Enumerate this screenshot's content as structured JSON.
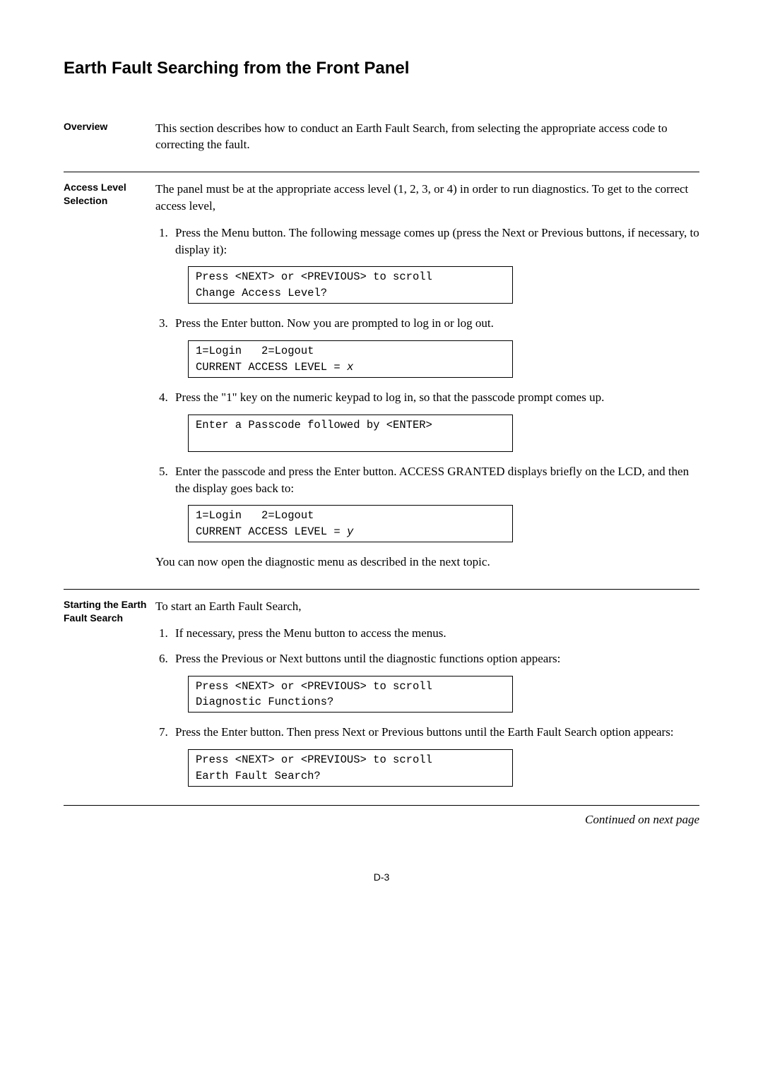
{
  "title": "Earth Fault Searching from the Front Panel",
  "overview": {
    "label": "Overview",
    "text": "This section describes how to conduct an Earth Fault Search, from selecting the appropriate access code to correcting the fault."
  },
  "access": {
    "label": "Access Level Selection",
    "intro": "The panel must be at the appropriate access level (1, 2, 3, or 4) in order to run diagnostics. To get to the correct access level,",
    "step1": "Press the Menu button. The following message comes up (press the Next or Previous buttons, if necessary, to display it):",
    "lcd1": "Press <NEXT> or <PREVIOUS> to scroll\nChange Access Level?",
    "step3": "Press the Enter button. Now you are prompted to log in or log out.",
    "lcd2_pre": "1=Login   2=Logout\nCURRENT ACCESS LEVEL = ",
    "lcd2_var": "x",
    "step4": "Press the \"1\" key on the numeric keypad to log in, so that the passcode prompt comes up.",
    "lcd3": "Enter a Passcode followed by <ENTER>\n ",
    "step5": "Enter the passcode and press the Enter button. ACCESS GRANTED displays briefly on the LCD, and then the display goes back to:",
    "lcd4_pre": "1=Login   2=Logout\nCURRENT ACCESS LEVEL = ",
    "lcd4_var": "y",
    "outro": "You can now open the diagnostic menu as described in the next topic."
  },
  "starting": {
    "label": "Starting the Earth Fault Search",
    "intro": "To start an Earth Fault Search,",
    "step1": "If necessary, press the Menu button to access the menus.",
    "step6": "Press the Previous or Next buttons until the diagnostic functions option appears:",
    "lcd5": "Press <NEXT> or <PREVIOUS> to scroll\nDiagnostic Functions?",
    "step7": "Press the Enter button. Then press Next or Previous buttons until the Earth Fault Search option appears:",
    "lcd6": "Press <NEXT> or <PREVIOUS> to scroll\nEarth Fault Search?"
  },
  "continued": "Continued on next page",
  "pagenum": "D-3"
}
